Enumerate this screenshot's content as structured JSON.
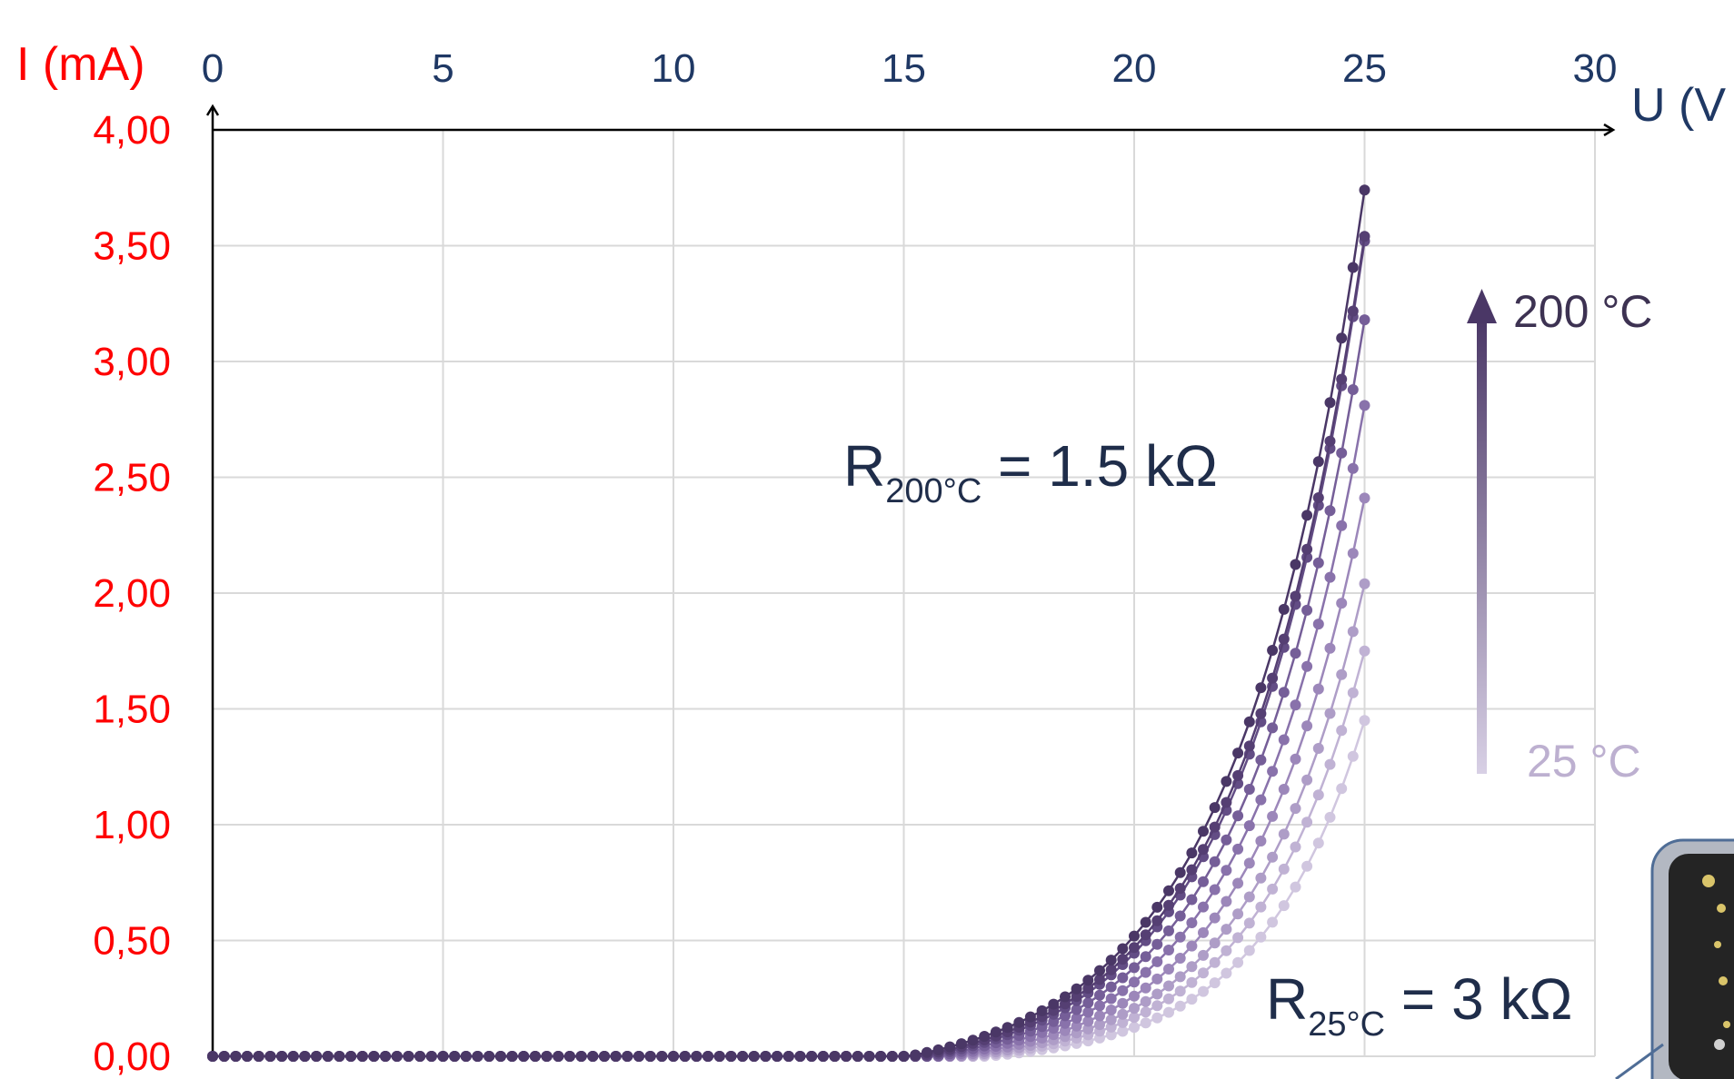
{
  "chart_data": {
    "type": "line",
    "ylabel": "I (mA)",
    "xlabel": "U (V",
    "xlim": [
      0,
      30
    ],
    "ylim": [
      0,
      4
    ],
    "xticks": [
      "0",
      "5",
      "10",
      "15",
      "20",
      "25",
      "30"
    ],
    "yticks": [
      "0,00",
      "0,50",
      "1,00",
      "1,50",
      "2,00",
      "2,50",
      "3,00",
      "3,50",
      "4,00"
    ],
    "grid": true,
    "x_step": 0.25,
    "x_max": 25,
    "series": [
      {
        "color": "#d0c6df",
        "end_value": 1.45,
        "onset": 16.8
      },
      {
        "color": "#c0b2d4",
        "end_value": 1.75,
        "onset": 16.5
      },
      {
        "color": "#ae9dc7",
        "end_value": 2.04,
        "onset": 16.3
      },
      {
        "color": "#9c87ba",
        "end_value": 2.41,
        "onset": 16.1
      },
      {
        "color": "#8972ab",
        "end_value": 2.81,
        "onset": 15.9
      },
      {
        "color": "#755e98",
        "end_value": 3.18,
        "onset": 15.7
      },
      {
        "color": "#634d85",
        "end_value": 3.52,
        "onset": 15.5
      },
      {
        "color": "#553f73",
        "end_value": 3.54,
        "onset": 15.3
      },
      {
        "color": "#4a3766",
        "end_value": 3.74,
        "onset": 15.1
      }
    ],
    "annotations": {
      "r_high": {
        "main": "R",
        "sub": "200°C",
        "rest": " = 1.5 kΩ"
      },
      "r_low": {
        "main": "R",
        "sub": "25°C",
        "rest": " = 3 kΩ"
      },
      "temp_high": "200 °C",
      "temp_low": "25 °C"
    }
  },
  "colors": {
    "y_axis_text": "#ff0000",
    "x_axis_text": "#1f3864",
    "grid": "#d9d9d9",
    "arrow_dark": "#4a3766",
    "arrow_light": "#cfc6de"
  }
}
